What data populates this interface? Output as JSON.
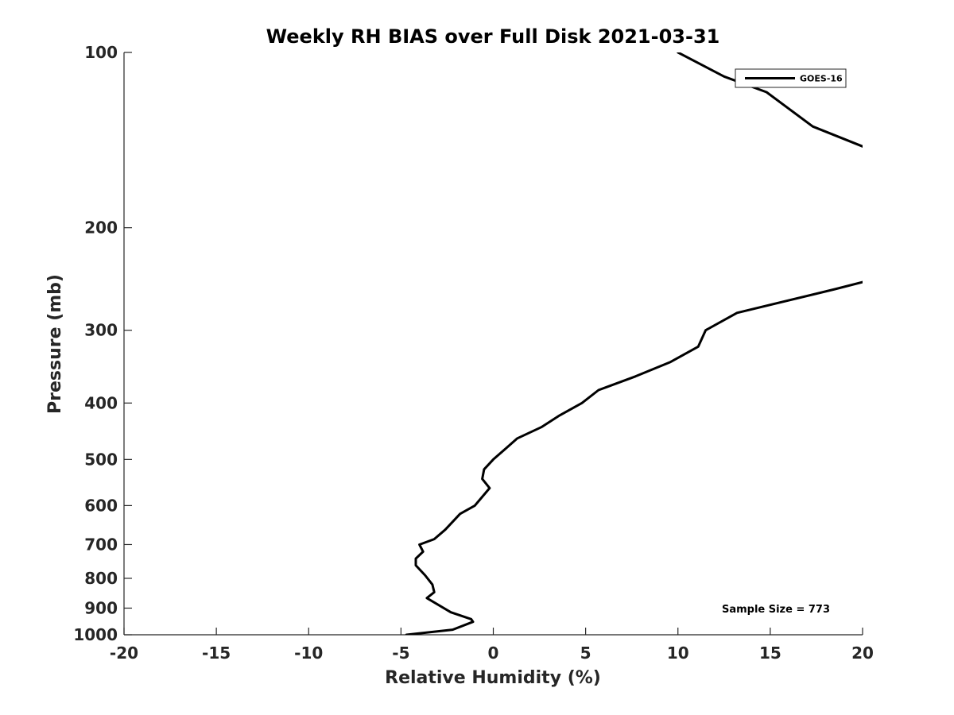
{
  "chart_data": {
    "type": "line",
    "title": "Weekly RH BIAS over Full Disk 2021-03-31",
    "xlabel": "Relative Humidity (%)",
    "ylabel": "Pressure (mb)",
    "xlim": [
      -20,
      20
    ],
    "ylim": [
      100,
      1000
    ],
    "yscale": "log",
    "y_reversed": true,
    "xticks": [
      "-20",
      "-15",
      "-10",
      "-5",
      "0",
      "5",
      "10",
      "15",
      "20"
    ],
    "yticks": [
      "100",
      "200",
      "300",
      "400",
      "500",
      "600",
      "700",
      "800",
      "900",
      "1000"
    ],
    "grid": false,
    "legend_position": "top-right",
    "annotation": "Sample Size = 773",
    "series": [
      {
        "name": "GOES-16",
        "color": "#000000",
        "x": [
          -4.7,
          -2.2,
          -1.1,
          -1.2,
          -2.3,
          -3.6,
          -3.2,
          -3.3,
          -3.7,
          -4.2,
          -4.2,
          -3.8,
          -4.0,
          -3.2,
          -2.6,
          -1.8,
          -1.0,
          -0.2,
          -0.6,
          -0.5,
          0.0,
          1.3,
          2.6,
          3.6,
          4.8,
          5.7,
          7.7,
          9.6,
          11.1,
          11.5,
          13.2,
          18.5,
          20.0
        ],
        "y": [
          1000,
          980,
          950,
          940,
          915,
          865,
          845,
          820,
          790,
          760,
          740,
          720,
          700,
          685,
          660,
          620,
          600,
          560,
          540,
          520,
          500,
          460,
          440,
          420,
          400,
          380,
          360,
          340,
          320,
          300,
          280,
          255,
          248
        ]
      },
      {
        "name": "",
        "color": "#000000",
        "x": [
          10.0,
          12.5,
          14.8,
          17.3,
          20.0
        ],
        "y": [
          100,
          110,
          117,
          134,
          145
        ]
      }
    ]
  }
}
